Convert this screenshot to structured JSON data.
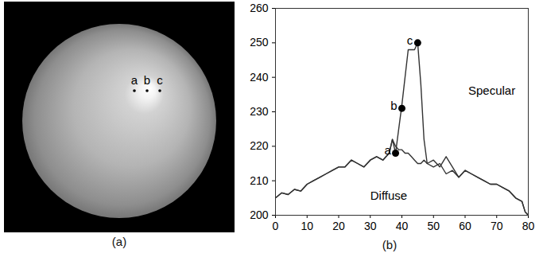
{
  "chart_data": {
    "type": "line",
    "caption": "(b)",
    "x": [
      0,
      2,
      4,
      6,
      8,
      10,
      12,
      14,
      16,
      18,
      20,
      22,
      24,
      26,
      28,
      30,
      32,
      34,
      35,
      36,
      37,
      38,
      39,
      40,
      41,
      42,
      43,
      44,
      45,
      46,
      47,
      48,
      50,
      52,
      54,
      56,
      58,
      60,
      62,
      64,
      66,
      68,
      70,
      72,
      74,
      76,
      78,
      79,
      80
    ],
    "series": [
      {
        "name": "Specular",
        "color": "#333333",
        "label_at": [
          61,
          236
        ],
        "values": [
          205,
          206.5,
          206,
          207.5,
          207,
          209,
          210,
          211,
          212,
          213,
          214,
          214,
          216,
          215,
          214,
          216,
          217,
          216,
          217,
          218,
          222,
          218,
          225,
          232,
          240,
          248,
          248,
          248,
          250,
          238,
          222,
          215,
          216,
          214,
          217,
          214,
          211,
          213,
          212,
          211,
          210,
          209,
          209,
          208,
          207,
          205,
          204,
          201,
          200
        ]
      },
      {
        "name": "Diffuse",
        "color": "#333333",
        "label_at": [
          30,
          205.5
        ],
        "values": [
          205,
          206.5,
          206,
          207.5,
          207,
          209,
          210,
          211,
          212,
          213,
          214,
          214,
          216,
          215,
          214,
          216,
          217,
          216,
          217,
          218,
          222,
          220,
          219,
          219,
          218,
          218,
          217,
          216,
          215,
          215,
          216,
          215,
          214,
          215,
          212,
          213,
          211,
          213,
          212,
          211,
          210,
          209,
          209,
          208,
          207,
          205,
          204,
          201,
          200
        ]
      }
    ],
    "annotations": [
      {
        "text": "a",
        "x": 38,
        "y": 218
      },
      {
        "text": "b",
        "x": 40,
        "y": 231
      },
      {
        "text": "c",
        "x": 45,
        "y": 250
      }
    ],
    "xlim": [
      0,
      80
    ],
    "ylim": [
      200,
      260
    ],
    "xticks": [
      0,
      10,
      20,
      30,
      40,
      50,
      60,
      70,
      80
    ],
    "yticks": [
      200,
      210,
      220,
      230,
      240,
      250,
      260
    ],
    "grid": false
  },
  "image": {
    "caption": "(a)",
    "labels": [
      "a",
      "b",
      "c"
    ]
  }
}
